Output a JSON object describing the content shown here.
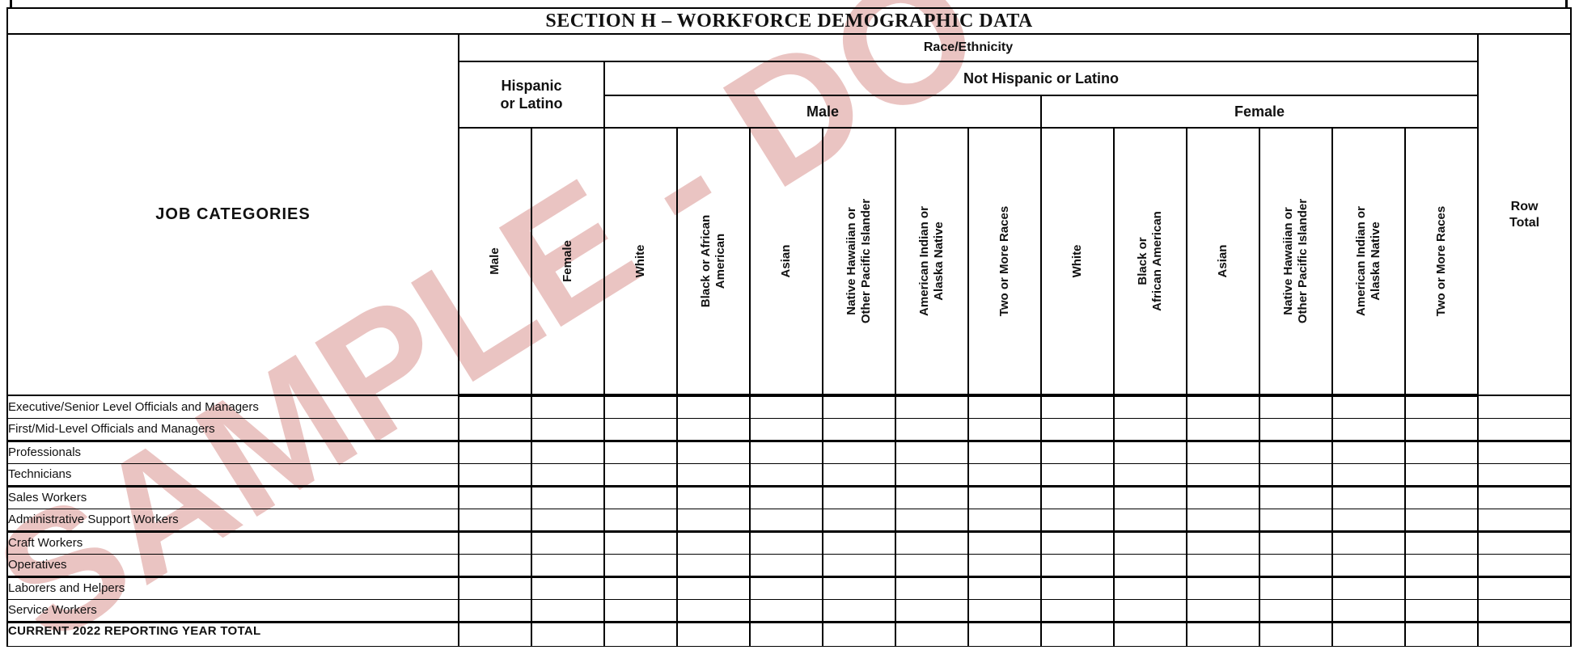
{
  "document": {
    "section_title": "SECTION H – WORKFORCE DEMOGRAPHIC DATA",
    "watermark_text": "SAMPLE - DO",
    "watermark_color": "#eac4c2"
  },
  "header": {
    "job_categories": "JOB CATEGORIES",
    "race_ethnicity": "Race/Ethnicity",
    "hispanic_or_latino": "Hispanic\nor Latino",
    "not_hispanic_or_latino": "Not Hispanic or Latino",
    "male_group": "Male",
    "female_group": "Female",
    "row_total": "Row\nTotal",
    "columns": [
      "Male",
      "Female",
      "White",
      "Black or African\nAmerican",
      "Asian",
      "Native Hawaiian or\nOther Pacific Islander",
      "American Indian or\nAlaska Native",
      "Two or More Races",
      "White",
      "Black or\nAfrican American",
      "Asian",
      "Native Hawaiian or\nOther Pacific Islander",
      "American Indian or\nAlaska Native",
      "Two or More Races"
    ]
  },
  "rows": [
    "Executive/Senior Level Officials and Managers",
    "First/Mid-Level Officials and Managers",
    "Professionals",
    "Technicians",
    "Sales Workers",
    "Administrative Support Workers",
    "Craft Workers",
    "Operatives",
    "Laborers and Helpers",
    "Service Workers"
  ],
  "footer_row": "CURRENT 2022 REPORTING YEAR TOTAL"
}
